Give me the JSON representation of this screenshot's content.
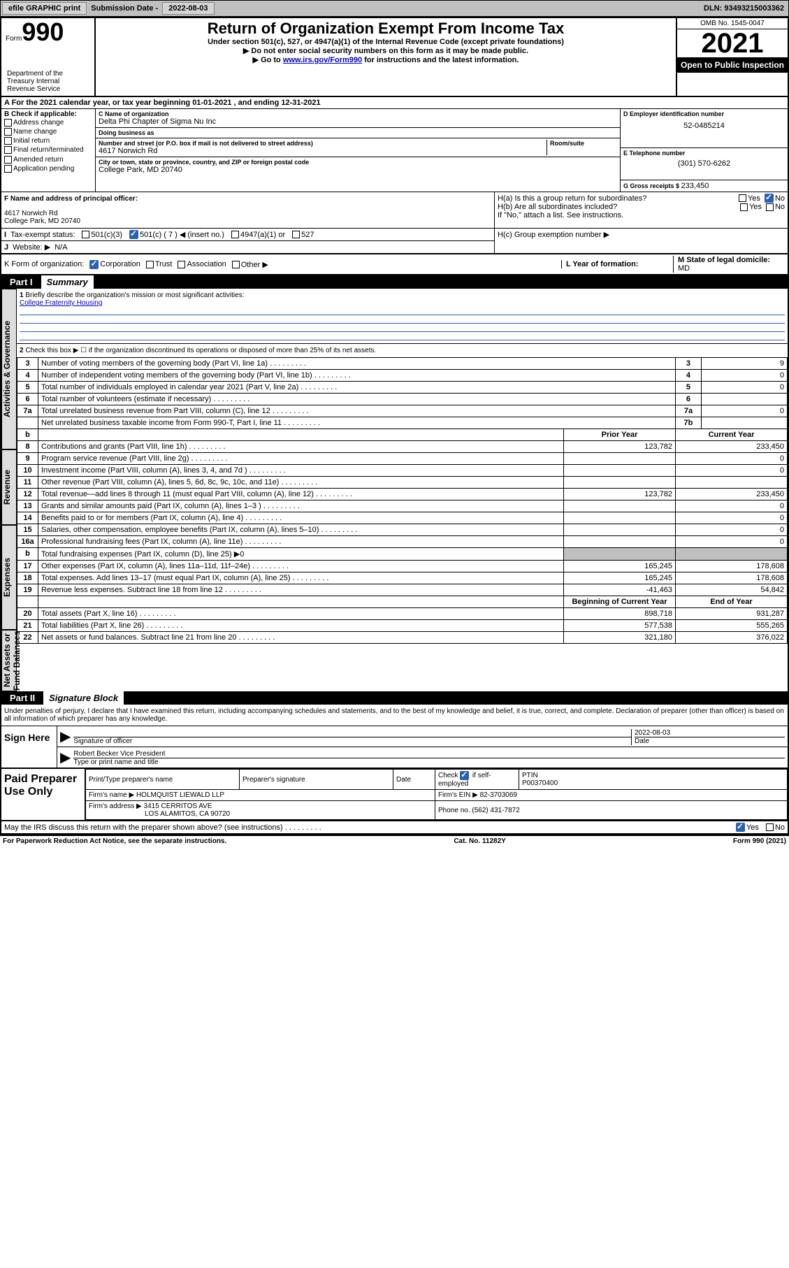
{
  "topbar": {
    "btn1": "efile GRAPHIC print",
    "sub_date_lbl": "Submission Date - ",
    "sub_date": "2022-08-03",
    "dln": "DLN: 93493215003362"
  },
  "header": {
    "form_lbl": "Form",
    "form_num": "990",
    "dept": "Department of the Treasury\nInternal Revenue Service",
    "title": "Return of Organization Exempt From Income Tax",
    "sub1": "Under section 501(c), 527, or 4947(a)(1) of the Internal Revenue Code (except private foundations)",
    "sub2": "Do not enter social security numbers on this form as it may be made public.",
    "sub3_a": "Go to ",
    "sub3_link": "www.irs.gov/Form990",
    "sub3_b": " for instructions and the latest information.",
    "omb": "OMB No. 1545-0047",
    "year": "2021",
    "open_public": "Open to Public Inspection"
  },
  "row_a": "A For the 2021 calendar year, or tax year beginning 01-01-2021   , and ending 12-31-2021",
  "col_b": {
    "hdr": "B Check if applicable:",
    "opts": [
      "Address change",
      "Name change",
      "Initial return",
      "Final return/terminated",
      "Amended return",
      "Application pending"
    ]
  },
  "c": {
    "name_lbl": "C Name of organization",
    "name": "Delta Phi Chapter of Sigma Nu Inc",
    "dba_lbl": "Doing business as",
    "dba": "",
    "addr_lbl": "Number and street (or P.O. box if mail is not delivered to street address)",
    "room_lbl": "Room/suite",
    "addr": "4617 Norwich Rd",
    "city_lbl": "City or town, state or province, country, and ZIP or foreign postal code",
    "city": "College Park, MD  20740"
  },
  "d": {
    "ein_lbl": "D Employer identification number",
    "ein": "52-0485214"
  },
  "e": {
    "tel_lbl": "E Telephone number",
    "tel": "(301) 570-6262"
  },
  "g": {
    "lbl": "G Gross receipts $ ",
    "val": "233,450"
  },
  "f": {
    "hdr": "F Name and address of principal officer:",
    "addr1": "4617 Norwich Rd",
    "addr2": "College Park, MD  20740"
  },
  "h": {
    "a": "H(a)  Is this a group return for subordinates?",
    "b": "H(b)  Are all subordinates included?",
    "b_note": "If \"No,\" attach a list. See instructions.",
    "c": "H(c)  Group exemption number ▶",
    "yes": "Yes",
    "no": "No"
  },
  "i": {
    "lbl": "Tax-exempt status:",
    "o1": "501(c)(3)",
    "o2": "501(c) ( 7 ) ◀ (insert no.)",
    "o3": "4947(a)(1) or",
    "o4": "527"
  },
  "j": {
    "lbl": "Website: ▶",
    "val": "N/A"
  },
  "k": {
    "lbl": "K Form of organization:",
    "o1": "Corporation",
    "o2": "Trust",
    "o3": "Association",
    "o4": "Other ▶"
  },
  "l": {
    "lbl": "L Year of formation:",
    "val": ""
  },
  "m": {
    "lbl": "M State of legal domicile:",
    "val": "MD"
  },
  "part1": {
    "num": "Part I",
    "title": "Summary",
    "vert_labels": [
      "Activities & Governance",
      "Revenue",
      "Expenses",
      "Net Assets or Fund Balances"
    ],
    "line1_lbl": "Briefly describe the organization's mission or most significant activities:",
    "line1_val": "College Fraternity Housing",
    "line2": "Check this box ▶ ☐  if the organization discontinued its operations or disposed of more than 25% of its net assets.",
    "cols": {
      "prior": "Prior Year",
      "current": "Current Year",
      "boy": "Beginning of Current Year",
      "eoy": "End of Year"
    },
    "rows": [
      {
        "sec": 0,
        "n": "3",
        "lbl": "Number of voting members of the governing body (Part VI, line 1a)",
        "box": "3",
        "val": "9"
      },
      {
        "sec": 0,
        "n": "4",
        "lbl": "Number of independent voting members of the governing body (Part VI, line 1b)",
        "box": "4",
        "val": "0"
      },
      {
        "sec": 0,
        "n": "5",
        "lbl": "Total number of individuals employed in calendar year 2021 (Part V, line 2a)",
        "box": "5",
        "val": "0"
      },
      {
        "sec": 0,
        "n": "6",
        "lbl": "Total number of volunteers (estimate if necessary)",
        "box": "6",
        "val": ""
      },
      {
        "sec": 0,
        "n": "7a",
        "lbl": "Total unrelated business revenue from Part VIII, column (C), line 12",
        "box": "7a",
        "val": "0"
      },
      {
        "sec": 0,
        "n": "",
        "lbl": "Net unrelated business taxable income from Form 990-T, Part I, line 11",
        "box": "7b",
        "val": ""
      },
      {
        "sec": 1,
        "n": "8",
        "lbl": "Contributions and grants (Part VIII, line 1h)",
        "prior": "123,782",
        "current": "233,450"
      },
      {
        "sec": 1,
        "n": "9",
        "lbl": "Program service revenue (Part VIII, line 2g)",
        "prior": "",
        "current": "0"
      },
      {
        "sec": 1,
        "n": "10",
        "lbl": "Investment income (Part VIII, column (A), lines 3, 4, and 7d )",
        "prior": "",
        "current": "0"
      },
      {
        "sec": 1,
        "n": "11",
        "lbl": "Other revenue (Part VIII, column (A), lines 5, 6d, 8c, 9c, 10c, and 11e)",
        "prior": "",
        "current": ""
      },
      {
        "sec": 1,
        "n": "12",
        "lbl": "Total revenue—add lines 8 through 11 (must equal Part VIII, column (A), line 12)",
        "prior": "123,782",
        "current": "233,450"
      },
      {
        "sec": 2,
        "n": "13",
        "lbl": "Grants and similar amounts paid (Part IX, column (A), lines 1–3 )",
        "prior": "",
        "current": "0"
      },
      {
        "sec": 2,
        "n": "14",
        "lbl": "Benefits paid to or for members (Part IX, column (A), line 4)",
        "prior": "",
        "current": "0"
      },
      {
        "sec": 2,
        "n": "15",
        "lbl": "Salaries, other compensation, employee benefits (Part IX, column (A), lines 5–10)",
        "prior": "",
        "current": "0"
      },
      {
        "sec": 2,
        "n": "16a",
        "lbl": "Professional fundraising fees (Part IX, column (A), line 11e)",
        "prior": "",
        "current": "0"
      },
      {
        "sec": 2,
        "n": "b",
        "lbl": "Total fundraising expenses (Part IX, column (D), line 25) ▶0",
        "shaded": true
      },
      {
        "sec": 2,
        "n": "17",
        "lbl": "Other expenses (Part IX, column (A), lines 11a–11d, 11f–24e)",
        "prior": "165,245",
        "current": "178,608"
      },
      {
        "sec": 2,
        "n": "18",
        "lbl": "Total expenses. Add lines 13–17 (must equal Part IX, column (A), line 25)",
        "prior": "165,245",
        "current": "178,608"
      },
      {
        "sec": 2,
        "n": "19",
        "lbl": "Revenue less expenses. Subtract line 18 from line 12",
        "prior": "-41,463",
        "current": "54,842"
      },
      {
        "sec": 3,
        "n": "20",
        "lbl": "Total assets (Part X, line 16)",
        "prior": "898,718",
        "current": "931,287"
      },
      {
        "sec": 3,
        "n": "21",
        "lbl": "Total liabilities (Part X, line 26)",
        "prior": "577,538",
        "current": "555,265"
      },
      {
        "sec": 3,
        "n": "22",
        "lbl": "Net assets or fund balances. Subtract line 21 from line 20",
        "prior": "321,180",
        "current": "376,022"
      }
    ]
  },
  "part2": {
    "num": "Part II",
    "title": "Signature Block",
    "decl": "Under penalties of perjury, I declare that I have examined this return, including accompanying schedules and statements, and to the best of my knowledge and belief, it is true, correct, and complete. Declaration of preparer (other than officer) is based on all information of which preparer has any knowledge."
  },
  "sign": {
    "left": "Sign Here",
    "sig_lbl": "Signature of officer",
    "date_lbl": "Date",
    "date": "2022-08-03",
    "name": "Robert Becker  Vice President",
    "name_lbl": "Type or print name and title"
  },
  "prep": {
    "left": "Paid Preparer Use Only",
    "print_lbl": "Print/Type preparer's name",
    "sig_lbl": "Preparer's signature",
    "date_lbl": "Date",
    "check_lbl": "Check",
    "self_emp": "if self-employed",
    "ptin_lbl": "PTIN",
    "ptin": "P00370400",
    "firm_name_lbl": "Firm's name   ▶",
    "firm_name": "HOLMQUIST LIEWALD LLP",
    "firm_ein_lbl": "Firm's EIN ▶",
    "firm_ein": "82-3703069",
    "firm_addr_lbl": "Firm's address ▶",
    "firm_addr1": "3415 CERRITOS AVE",
    "firm_addr2": "LOS ALAMITOS, CA  90720",
    "phone_lbl": "Phone no.",
    "phone": "(562) 431-7872"
  },
  "discuss": {
    "q": "May the IRS discuss this return with the preparer shown above? (see instructions)",
    "yes": "Yes",
    "no": "No"
  },
  "footer": {
    "left": "For Paperwork Reduction Act Notice, see the separate instructions.",
    "mid": "Cat. No. 11282Y",
    "right": "Form 990 (2021)"
  }
}
